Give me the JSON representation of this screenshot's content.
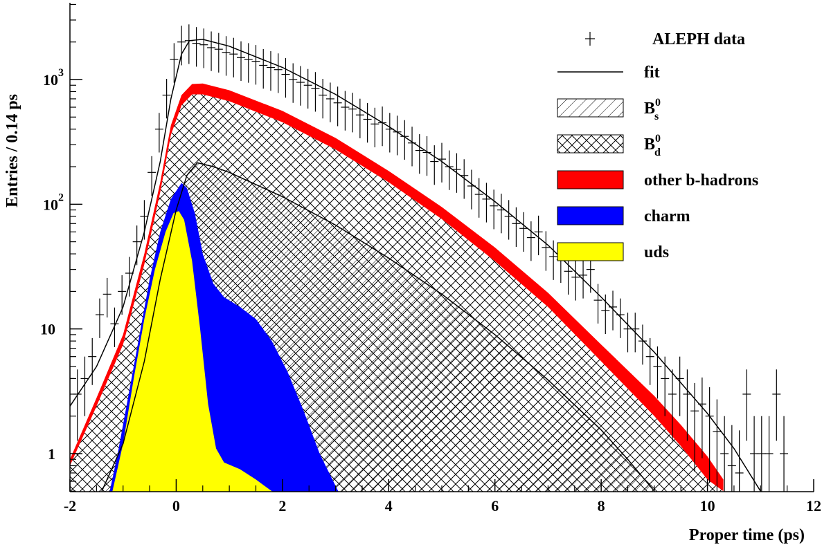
{
  "chart_data": {
    "type": "line",
    "xlabel": "Proper time (ps)",
    "ylabel": "Entries / 0.14 ps",
    "x_range": [
      -2,
      12
    ],
    "y_range": [
      0.5,
      4500
    ],
    "y_scale": "log",
    "x_ticks": [
      "-2",
      "0",
      "2",
      "4",
      "6",
      "8",
      "10",
      "12"
    ],
    "y_ticks": [
      {
        "value": 1,
        "label": "1"
      },
      {
        "value": 10,
        "label": "10"
      },
      {
        "value": 100,
        "label": "10",
        "sup": "2"
      },
      {
        "value": 1000,
        "label": "10",
        "sup": "3"
      }
    ],
    "legend": {
      "position": "top-right",
      "entries": [
        {
          "key": "data",
          "label": "ALEPH data",
          "sub": "",
          "style": "marker"
        },
        {
          "key": "fit",
          "label": "fit",
          "sub": "",
          "style": "line"
        },
        {
          "key": "bs",
          "label": "B",
          "sup": "0",
          "sub": "s",
          "style": "hatch-diag"
        },
        {
          "key": "bd",
          "label": "B",
          "sup": "0",
          "sub": "d",
          "style": "hatch-cross"
        },
        {
          "key": "other",
          "label": "other b-hadrons",
          "sub": "",
          "style": "fill",
          "color": "#ff0000"
        },
        {
          "key": "charm",
          "label": "charm",
          "sub": "",
          "style": "fill",
          "color": "#0000ff"
        },
        {
          "key": "uds",
          "label": "uds",
          "sub": "",
          "style": "fill",
          "color": "#ffff00"
        }
      ]
    },
    "colors": {
      "other": "#ff0000",
      "charm": "#0000ff",
      "uds": "#ffff00",
      "line": "#000000"
    },
    "series": [
      {
        "key": "fit",
        "x": [
          -2,
          -1.5,
          -1.0,
          -0.6,
          -0.3,
          -0.1,
          0.1,
          0.25,
          0.5,
          1,
          2,
          3,
          4,
          5,
          6,
          7,
          8,
          9,
          10,
          10.5,
          11
        ],
        "y": [
          2.4,
          5,
          15,
          60,
          220,
          700,
          1600,
          2050,
          2100,
          1850,
          1250,
          760,
          420,
          220,
          105,
          47,
          18,
          6.5,
          2.1,
          1.1,
          0.5
        ]
      },
      {
        "key": "total_mc",
        "x": [
          -2,
          -1.5,
          -1.0,
          -0.6,
          -0.3,
          -0.1,
          0.1,
          0.3,
          0.5,
          1,
          2,
          3,
          4,
          5,
          6,
          7,
          8,
          9,
          9.5,
          10,
          10.3
        ],
        "y": [
          0.9,
          2.8,
          9,
          40,
          150,
          430,
          750,
          920,
          930,
          820,
          560,
          340,
          185,
          95,
          45,
          19.5,
          7.5,
          2.9,
          1.7,
          0.95,
          0.62
        ]
      },
      {
        "key": "other_lower",
        "x": [
          -2,
          -1.5,
          -1.0,
          -0.6,
          -0.3,
          -0.1,
          0.1,
          0.3,
          0.5,
          1,
          2,
          3,
          4,
          5,
          6,
          7,
          8,
          9,
          9.5,
          10,
          10.3
        ],
        "y": [
          0.8,
          2.4,
          7.5,
          33,
          125,
          360,
          620,
          760,
          760,
          670,
          455,
          275,
          150,
          76,
          35,
          15,
          5.5,
          2.0,
          1.15,
          0.62,
          0.5
        ]
      },
      {
        "key": "bs",
        "x": [
          -1.4,
          -1.0,
          -0.6,
          -0.3,
          0,
          0.2,
          0.4,
          0.7,
          1,
          2,
          3,
          4,
          5,
          6,
          7,
          8,
          8.5,
          9
        ],
        "y": [
          0.5,
          1.2,
          5.5,
          25,
          90,
          170,
          215,
          200,
          180,
          115,
          68,
          37,
          19,
          9,
          3.9,
          1.55,
          0.9,
          0.5
        ]
      },
      {
        "key": "charm",
        "x": [
          -1.25,
          -1.1,
          -0.8,
          -0.5,
          -0.3,
          -0.1,
          0.1,
          0.2,
          0.35,
          0.5,
          0.7,
          0.9,
          1.2,
          1.5,
          1.8,
          2.1,
          2.4,
          2.7,
          3.0,
          3.05
        ],
        "y": [
          0.5,
          1.0,
          5,
          25,
          60,
          110,
          148,
          135,
          85,
          40,
          23,
          18,
          15,
          12,
          8,
          4.5,
          2.2,
          1.0,
          0.55,
          0.5
        ]
      },
      {
        "key": "uds",
        "x": [
          -1.2,
          -1.0,
          -0.8,
          -0.6,
          -0.4,
          -0.2,
          -0.05,
          0.05,
          0.15,
          0.3,
          0.45,
          0.6,
          0.75,
          0.9,
          1.2,
          1.5,
          1.8
        ],
        "y": [
          0.5,
          1.2,
          4,
          12,
          30,
          60,
          85,
          88,
          75,
          35,
          10,
          2.5,
          1.1,
          0.85,
          0.75,
          0.62,
          0.5
        ]
      }
    ],
    "data_points": {
      "x": [
        -2,
        -1.86,
        -1.72,
        -1.58,
        -1.44,
        -1.3,
        -1.16,
        -1.02,
        -0.88,
        -0.74,
        -0.6,
        -0.46,
        -0.32,
        -0.18,
        -0.04,
        0.1,
        0.24,
        0.38,
        0.52,
        0.66,
        0.8,
        0.94,
        1.08,
        1.22,
        1.36,
        1.5,
        1.64,
        1.78,
        1.92,
        2.06,
        2.2,
        2.34,
        2.48,
        2.62,
        2.76,
        2.9,
        3.04,
        3.18,
        3.32,
        3.46,
        3.6,
        3.74,
        3.88,
        4.02,
        4.16,
        4.3,
        4.44,
        4.58,
        4.72,
        4.86,
        5.0,
        5.14,
        5.28,
        5.42,
        5.56,
        5.7,
        5.84,
        5.98,
        6.12,
        6.26,
        6.4,
        6.54,
        6.68,
        6.82,
        6.96,
        7.1,
        7.24,
        7.38,
        7.52,
        7.66,
        7.8,
        7.94,
        8.08,
        8.22,
        8.36,
        8.5,
        8.64,
        8.78,
        8.92,
        9.06,
        9.2,
        9.34,
        9.48,
        9.62,
        9.76,
        9.9,
        10.04,
        10.18,
        10.32,
        10.46,
        10.6,
        10.74,
        10.88,
        11.02,
        11.16,
        11.3,
        11.44
      ],
      "y": [
        4,
        3,
        4,
        6,
        13,
        19,
        11,
        20,
        28,
        50,
        80,
        180,
        400,
        750,
        1450,
        2000,
        2050,
        1950,
        1900,
        1800,
        1750,
        1650,
        1600,
        1500,
        1450,
        1400,
        1300,
        1250,
        1200,
        1100,
        1000,
        950,
        900,
        850,
        750,
        700,
        650,
        600,
        580,
        520,
        480,
        440,
        450,
        400,
        380,
        350,
        310,
        270,
        260,
        220,
        230,
        200,
        190,
        170,
        140,
        120,
        110,
        97,
        90,
        80,
        70,
        64,
        54,
        60,
        45,
        38,
        36,
        29,
        26,
        27,
        30,
        17,
        14,
        15,
        13,
        10,
        10,
        8,
        6,
        5,
        4,
        3,
        4,
        3,
        2.2,
        2.5,
        2,
        1.5,
        1,
        0.8,
        0.7,
        3,
        1,
        1,
        1,
        3,
        1
      ],
      "yerr_rel": 0.35
    }
  }
}
